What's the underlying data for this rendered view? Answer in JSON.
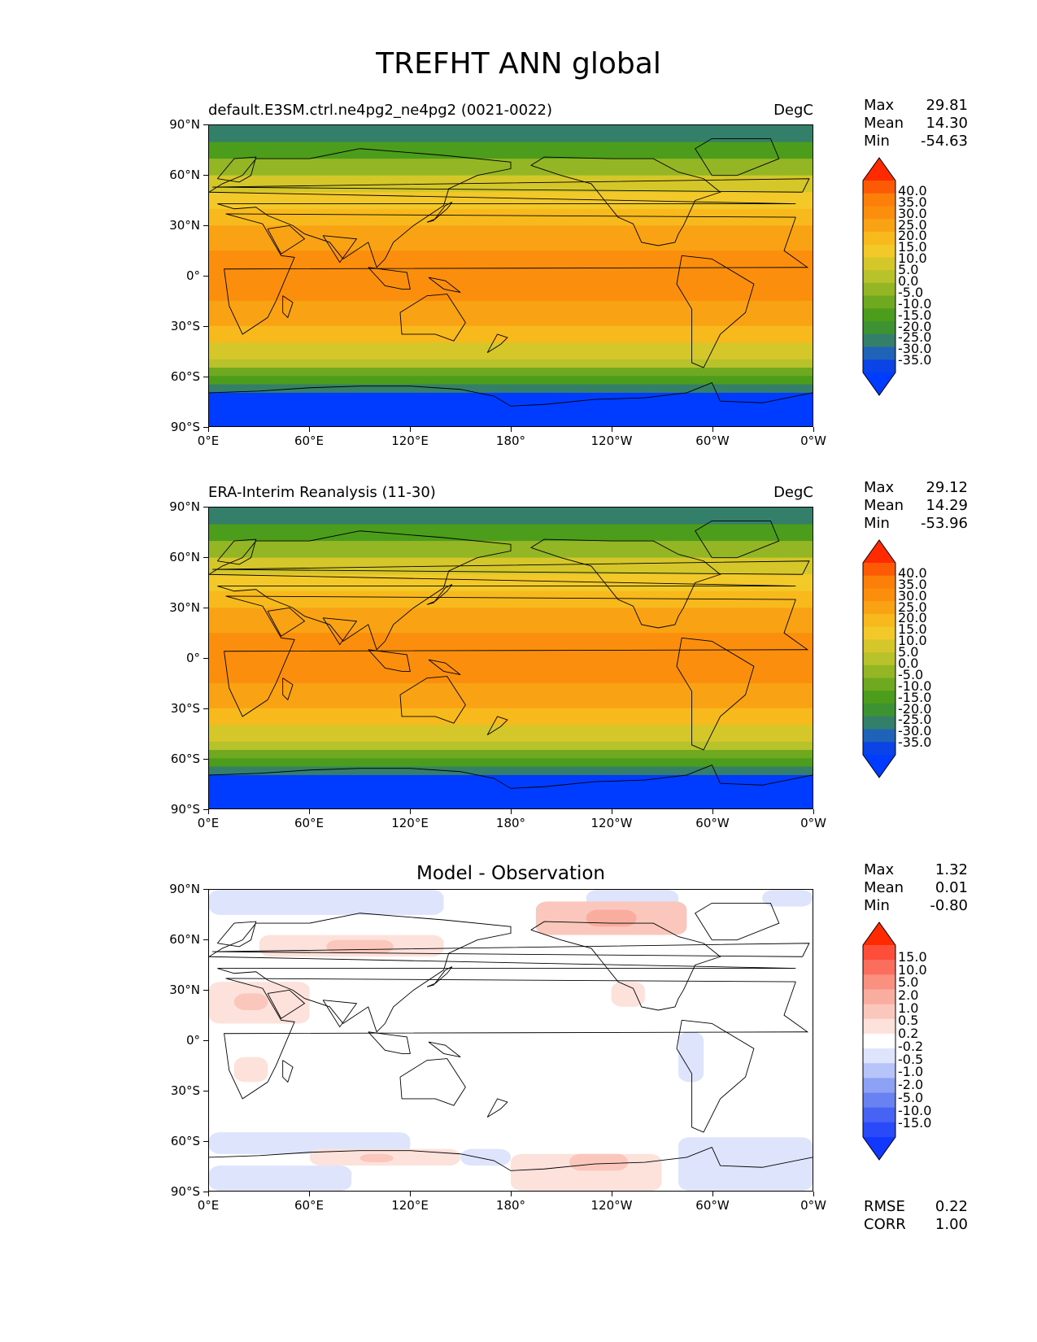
{
  "figure_title": "TREFHT ANN global",
  "lat_labels": [
    "90°N",
    "60°N",
    "30°N",
    "0°",
    "30°S",
    "60°S",
    "90°S"
  ],
  "lon_labels": [
    "0°E",
    "60°E",
    "120°E",
    "180°",
    "120°W",
    "60°W",
    "0°W"
  ],
  "stat_labels": {
    "max": "Max",
    "mean": "Mean",
    "min": "Min",
    "rmse": "RMSE",
    "corr": "CORR"
  },
  "panels": [
    {
      "title_left": "default.E3SM.ctrl.ne4pg2_ne4pg2 (0021-0022)",
      "title_center": "",
      "units": "DegC",
      "stats": {
        "max": "29.81",
        "mean": "14.30",
        "min": "-54.63"
      },
      "colorbar": {
        "levels": [
          "40.0",
          "35.0",
          "30.0",
          "25.0",
          "20.0",
          "15.0",
          "10.0",
          "5.0",
          "0.0",
          "-5.0",
          "-10.0",
          "-15.0",
          "-20.0",
          "-25.0",
          "-30.0",
          "-35.0"
        ],
        "colors": [
          "#ff2a00",
          "#fd5a05",
          "#fc7f0a",
          "#fb8e0c",
          "#f9a314",
          "#f7b91c",
          "#f2c928",
          "#d5c72a",
          "#b8c22a",
          "#94b625",
          "#6fa91f",
          "#4b9d1b",
          "#3d9231",
          "#337f6a",
          "#1e63b8",
          "#0a44e6",
          "#003cff"
        ],
        "extend": "both"
      },
      "map_data": {
        "type": "filled-contour",
        "lat_bands": [
          {
            "lat_range": [
              90,
              80
            ],
            "value": -22
          },
          {
            "lat_range": [
              80,
              70
            ],
            "value": -12
          },
          {
            "lat_range": [
              70,
              60
            ],
            "value": -2
          },
          {
            "lat_range": [
              60,
              50
            ],
            "value": 6
          },
          {
            "lat_range": [
              50,
              40
            ],
            "value": 12
          },
          {
            "lat_range": [
              40,
              30
            ],
            "value": 18
          },
          {
            "lat_range": [
              30,
              15
            ],
            "value": 23
          },
          {
            "lat_range": [
              15,
              -15
            ],
            "value": 27
          },
          {
            "lat_range": [
              -15,
              -30
            ],
            "value": 23
          },
          {
            "lat_range": [
              -30,
              -40
            ],
            "value": 17
          },
          {
            "lat_range": [
              -40,
              -50
            ],
            "value": 9
          },
          {
            "lat_range": [
              -50,
              -55
            ],
            "value": 2
          },
          {
            "lat_range": [
              -55,
              -60
            ],
            "value": -6
          },
          {
            "lat_range": [
              -60,
              -65
            ],
            "value": -14
          },
          {
            "lat_range": [
              -65,
              -70
            ],
            "value": -24
          },
          {
            "lat_range": [
              -70,
              -90
            ],
            "value": -42
          }
        ]
      }
    },
    {
      "title_left": "ERA-Interim Reanalysis (11-30)",
      "title_center": "",
      "units": "DegC",
      "stats": {
        "max": "29.12",
        "mean": "14.29",
        "min": "-53.96"
      },
      "colorbar": {
        "levels": [
          "40.0",
          "35.0",
          "30.0",
          "25.0",
          "20.0",
          "15.0",
          "10.0",
          "5.0",
          "0.0",
          "-5.0",
          "-10.0",
          "-15.0",
          "-20.0",
          "-25.0",
          "-30.0",
          "-35.0"
        ],
        "colors": [
          "#ff2a00",
          "#fd5a05",
          "#fc7f0a",
          "#fb8e0c",
          "#f9a314",
          "#f7b91c",
          "#f2c928",
          "#d5c72a",
          "#b8c22a",
          "#94b625",
          "#6fa91f",
          "#4b9d1b",
          "#3d9231",
          "#337f6a",
          "#1e63b8",
          "#0a44e6",
          "#003cff"
        ],
        "extend": "both"
      },
      "map_data": {
        "type": "filled-contour",
        "lat_bands": [
          {
            "lat_range": [
              90,
              80
            ],
            "value": -22
          },
          {
            "lat_range": [
              80,
              70
            ],
            "value": -12
          },
          {
            "lat_range": [
              70,
              60
            ],
            "value": -2
          },
          {
            "lat_range": [
              60,
              50
            ],
            "value": 6
          },
          {
            "lat_range": [
              50,
              40
            ],
            "value": 12
          },
          {
            "lat_range": [
              40,
              30
            ],
            "value": 18
          },
          {
            "lat_range": [
              30,
              15
            ],
            "value": 23
          },
          {
            "lat_range": [
              15,
              -15
            ],
            "value": 27
          },
          {
            "lat_range": [
              -15,
              -30
            ],
            "value": 23
          },
          {
            "lat_range": [
              -30,
              -40
            ],
            "value": 17
          },
          {
            "lat_range": [
              -40,
              -50
            ],
            "value": 9
          },
          {
            "lat_range": [
              -50,
              -55
            ],
            "value": 2
          },
          {
            "lat_range": [
              -55,
              -60
            ],
            "value": -6
          },
          {
            "lat_range": [
              -60,
              -65
            ],
            "value": -14
          },
          {
            "lat_range": [
              -65,
              -70
            ],
            "value": -24
          },
          {
            "lat_range": [
              -70,
              -90
            ],
            "value": -42
          }
        ]
      }
    },
    {
      "title_left": "",
      "title_center": "Model - Observation",
      "units": "",
      "stats": {
        "max": "1.32",
        "mean": "0.01",
        "min": "-0.80"
      },
      "rmse": "0.22",
      "corr": "1.00",
      "colorbar": {
        "levels": [
          "15.0",
          "10.0",
          "5.0",
          "2.0",
          "1.0",
          "0.5",
          "0.2",
          "-0.2",
          "-0.5",
          "-1.0",
          "-2.0",
          "-5.0",
          "-10.0",
          "-15.0"
        ],
        "colors": [
          "#ff2a00",
          "#fd4e3a",
          "#fb6d5d",
          "#f99080",
          "#f8ad9f",
          "#fbc6bb",
          "#fde2dc",
          "#ffffff",
          "#dde4fc",
          "#b6c4f9",
          "#8da2f5",
          "#6982f2",
          "#4663f4",
          "#2a49f8",
          "#1237ff"
        ],
        "extend": "both"
      },
      "map_data": {
        "type": "filled-contour",
        "background_value": 0,
        "anomalies": [
          {
            "lon": [
              0,
              140
            ],
            "lat": [
              90,
              75
            ],
            "value": -0.3
          },
          {
            "lon": [
              225,
              280
            ],
            "lat": [
              90,
              78
            ],
            "value": -0.3
          },
          {
            "lon": [
              330,
              360
            ],
            "lat": [
              90,
              80
            ],
            "value": -0.3
          },
          {
            "lon": [
              195,
              285
            ],
            "lat": [
              83,
              63
            ],
            "value": 0.5
          },
          {
            "lon": [
              225,
              255
            ],
            "lat": [
              78,
              68
            ],
            "value": 1.0
          },
          {
            "lon": [
              30,
              140
            ],
            "lat": [
              63,
              50
            ],
            "value": 0.4
          },
          {
            "lon": [
              70,
              110
            ],
            "lat": [
              60,
              52
            ],
            "value": 0.7
          },
          {
            "lon": [
              240,
              260
            ],
            "lat": [
              35,
              20
            ],
            "value": 0.3
          },
          {
            "lon": [
              0,
              60
            ],
            "lat": [
              35,
              10
            ],
            "value": 0.3
          },
          {
            "lon": [
              15,
              35
            ],
            "lat": [
              28,
              18
            ],
            "value": 0.6
          },
          {
            "lon": [
              280,
              295
            ],
            "lat": [
              5,
              -25
            ],
            "value": -0.3
          },
          {
            "lon": [
              15,
              35
            ],
            "lat": [
              -10,
              -25
            ],
            "value": 0.3
          },
          {
            "lon": [
              0,
              120
            ],
            "lat": [
              -55,
              -68
            ],
            "value": -0.3
          },
          {
            "lon": [
              0,
              85
            ],
            "lat": [
              -75,
              -90
            ],
            "value": -0.3
          },
          {
            "lon": [
              60,
              150
            ],
            "lat": [
              -65,
              -75
            ],
            "value": 0.3
          },
          {
            "lon": [
              90,
              110
            ],
            "lat": [
              -68,
              -73
            ],
            "value": 0.6
          },
          {
            "lon": [
              150,
              180
            ],
            "lat": [
              -65,
              -75
            ],
            "value": -0.3
          },
          {
            "lon": [
              180,
              270
            ],
            "lat": [
              -68,
              -90
            ],
            "value": 0.3
          },
          {
            "lon": [
              215,
              250
            ],
            "lat": [
              -68,
              -78
            ],
            "value": 0.6
          },
          {
            "lon": [
              280,
              360
            ],
            "lat": [
              -58,
              -90
            ],
            "value": -0.3
          }
        ]
      }
    }
  ]
}
